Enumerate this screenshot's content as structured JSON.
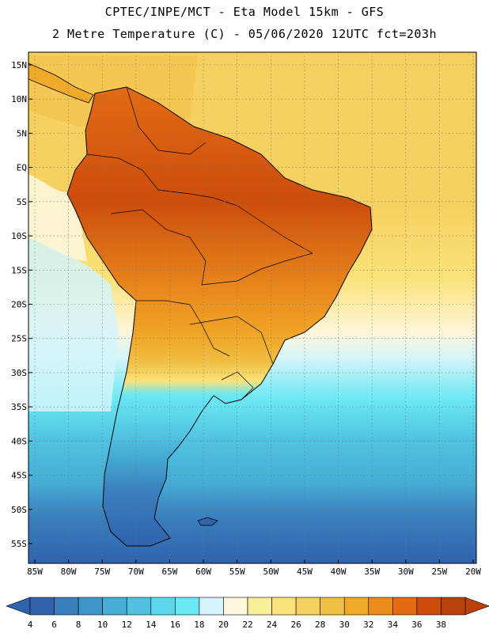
{
  "header": {
    "title_line1": "CPTEC/INPE/MCT -  Eta Model 15km - GFS",
    "title_line2": "2 Metre Temperature (C) - 05/06/2020 12UTC fct=203h"
  },
  "map": {
    "lat_labels": [
      "15N",
      "10N",
      "5N",
      "EQ",
      "5S",
      "10S",
      "15S",
      "20S",
      "25S",
      "30S",
      "35S",
      "40S",
      "45S",
      "50S",
      "55S"
    ],
    "lon_labels": [
      "85W",
      "80W",
      "75W",
      "70W",
      "65W",
      "60W",
      "55W",
      "50W",
      "45W",
      "40W",
      "35W",
      "30W",
      "25W",
      "20W"
    ],
    "lat_values": [
      15,
      10,
      5,
      0,
      -5,
      -10,
      -15,
      -20,
      -25,
      -30,
      -35,
      -40,
      -45,
      -50,
      -55
    ],
    "lon_values": [
      -85,
      -80,
      -75,
      -70,
      -65,
      -60,
      -55,
      -50,
      -45,
      -40,
      -35,
      -30,
      -25,
      -20
    ]
  },
  "colorbar": {
    "labels": [
      "4",
      "6",
      "8",
      "10",
      "12",
      "14",
      "16",
      "18",
      "20",
      "22",
      "24",
      "26",
      "28",
      "30",
      "32",
      "34",
      "36",
      "38"
    ],
    "colors": [
      "#2f63ae",
      "#3a7fbd",
      "#3f96c8",
      "#46aed6",
      "#50c2e0",
      "#5cd6ea",
      "#6ae8f4",
      "#d2f4fa",
      "#fdf6dc",
      "#fbee9a",
      "#fbe278",
      "#f6d060",
      "#f0bf45",
      "#f0a928",
      "#eb8b1e",
      "#e36b14",
      "#cc4d0b",
      "#b8420a"
    ],
    "low_color": "#2f63ae",
    "high_color": "#b8420a"
  }
}
